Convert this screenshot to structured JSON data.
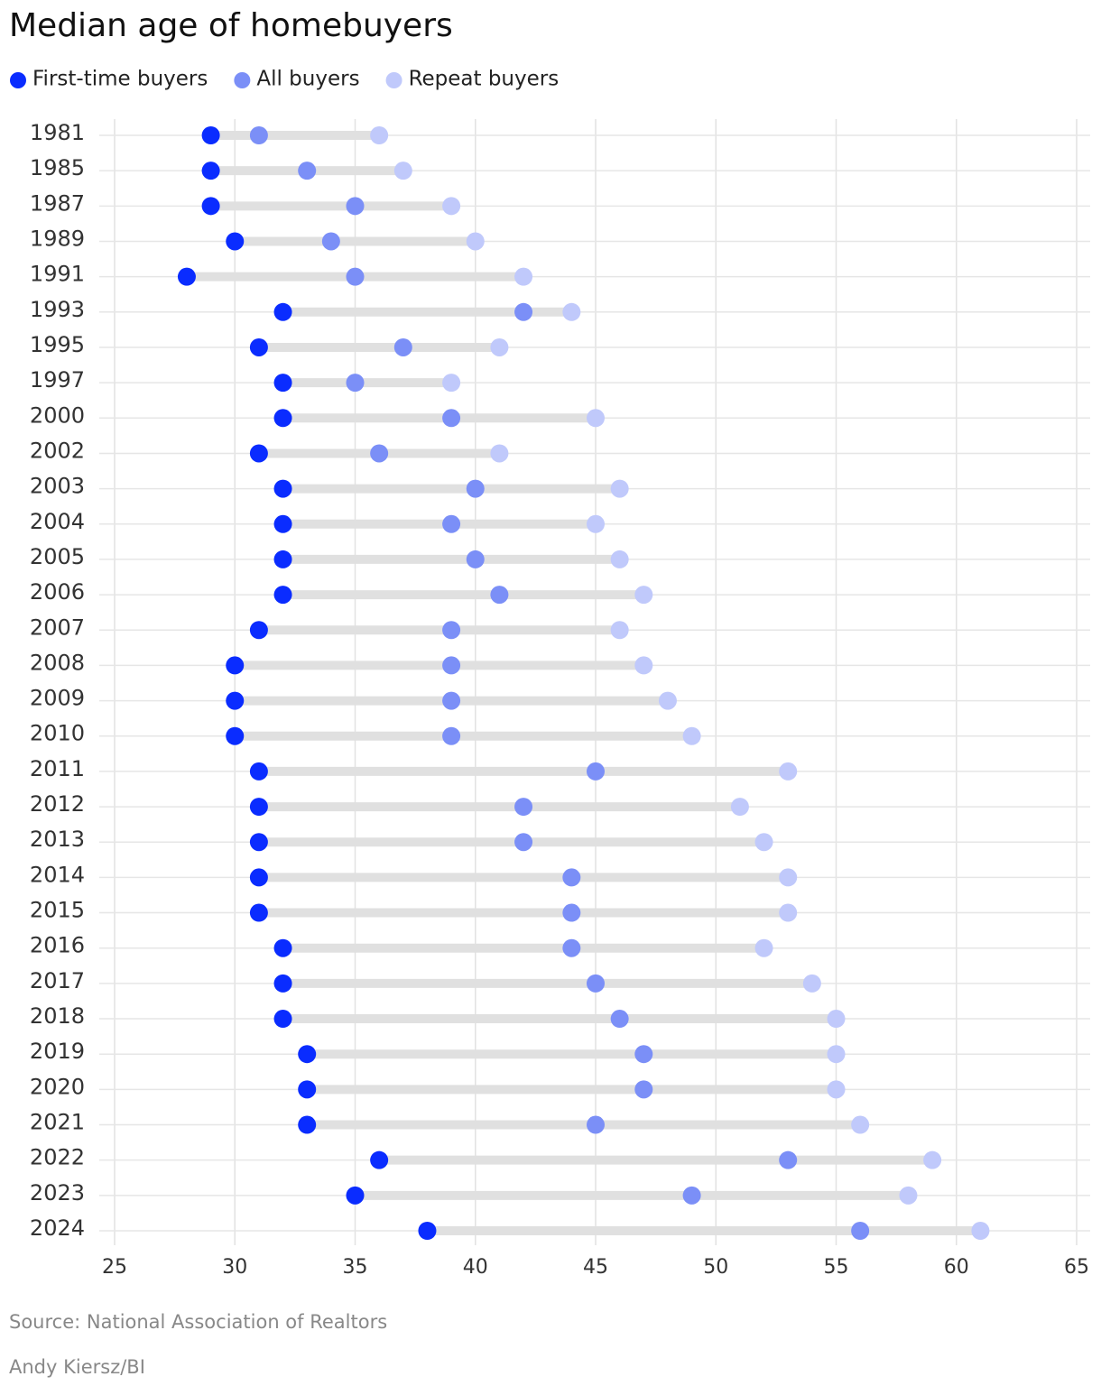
{
  "chart_data": {
    "type": "dumbbell",
    "title": "Median age of homebuyers",
    "categories": [
      "1981",
      "1985",
      "1987",
      "1989",
      "1991",
      "1993",
      "1995",
      "1997",
      "2000",
      "2002",
      "2003",
      "2004",
      "2005",
      "2006",
      "2007",
      "2008",
      "2009",
      "2010",
      "2011",
      "2012",
      "2013",
      "2014",
      "2015",
      "2016",
      "2017",
      "2018",
      "2019",
      "2020",
      "2021",
      "2022",
      "2023",
      "2024"
    ],
    "series": [
      {
        "name": "First-time buyers",
        "color": "#0a2cff",
        "values": [
          29,
          29,
          29,
          30,
          28,
          32,
          31,
          32,
          32,
          31,
          32,
          32,
          32,
          32,
          31,
          30,
          30,
          30,
          31,
          31,
          31,
          31,
          31,
          32,
          32,
          32,
          33,
          33,
          33,
          36,
          35,
          38
        ]
      },
      {
        "name": "All buyers",
        "color": "#7b8ff7",
        "values": [
          31,
          33,
          35,
          34,
          35,
          42,
          37,
          35,
          39,
          36,
          40,
          39,
          40,
          41,
          39,
          39,
          39,
          39,
          45,
          42,
          42,
          44,
          44,
          44,
          45,
          46,
          47,
          47,
          45,
          53,
          49,
          56
        ]
      },
      {
        "name": "Repeat buyers",
        "color": "#c0c9fb",
        "values": [
          36,
          37,
          39,
          40,
          42,
          44,
          41,
          39,
          45,
          41,
          46,
          45,
          46,
          47,
          46,
          47,
          48,
          49,
          53,
          51,
          52,
          53,
          53,
          52,
          54,
          55,
          55,
          55,
          56,
          59,
          58,
          61
        ]
      }
    ],
    "xlim": [
      25,
      65
    ],
    "xticks": [
      25,
      30,
      35,
      40,
      45,
      50,
      55,
      60,
      65
    ],
    "grid": true,
    "source": "Source: National Association of Realtors",
    "credit": "Andy Kiersz/BI"
  }
}
